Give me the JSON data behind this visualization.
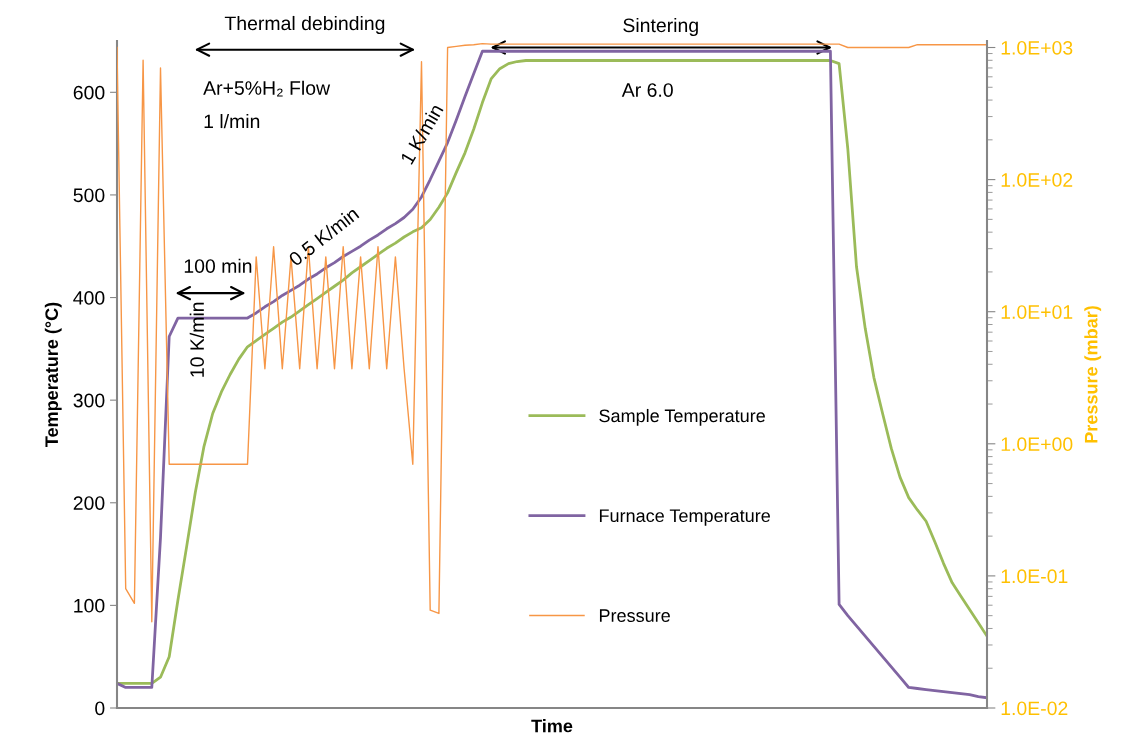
{
  "chart_data": {
    "type": "line",
    "xlabel": "Time",
    "ylabel": "Temperature (°C)",
    "y2label": "Pressure (mbar)",
    "categories": [
      null,
      null,
      null,
      null,
      null,
      null,
      null,
      null,
      null,
      null,
      null,
      null,
      null,
      null,
      null,
      null,
      null,
      null,
      null,
      null,
      null,
      null,
      null,
      null,
      null,
      null,
      null,
      null,
      null,
      null,
      null,
      null,
      null,
      null,
      null,
      null,
      null,
      null,
      null,
      null,
      null,
      null,
      null,
      null,
      null,
      null,
      null,
      null,
      null,
      null,
      null,
      null,
      null,
      null,
      null,
      null,
      null,
      null,
      null,
      null,
      null,
      null,
      null,
      null,
      null,
      null,
      null,
      null,
      null,
      null,
      null,
      null,
      null,
      null,
      null,
      null,
      null,
      null,
      null,
      null,
      null,
      null,
      null,
      null,
      null,
      null,
      null,
      null,
      null,
      null,
      null,
      null,
      null,
      null,
      null,
      null,
      null,
      null,
      null,
      null,
      null
    ],
    "series": [
      {
        "name": "Sample Temperature",
        "color": "#9bbb59",
        "values": [
          24,
          24,
          24,
          24,
          24,
          30,
          50,
          105,
          157,
          210,
          255,
          287,
          308,
          325,
          340,
          352,
          358,
          364,
          370,
          376,
          381,
          387,
          393,
          399,
          405,
          411,
          417,
          424,
          430,
          436,
          442,
          448,
          453,
          459,
          464,
          468,
          476,
          488,
          502,
          522,
          541,
          564,
          590,
          613,
          623,
          628,
          630,
          631,
          631,
          631,
          631,
          631,
          631,
          631,
          631,
          631,
          631,
          631,
          631,
          631,
          631,
          631,
          631,
          631,
          631,
          631,
          631,
          631,
          631,
          631,
          631,
          631,
          631,
          631,
          631,
          631,
          631,
          631,
          631,
          631,
          631,
          631,
          631,
          628,
          545,
          430,
          370,
          322,
          287,
          253,
          225,
          205,
          193,
          182,
          162,
          141,
          122,
          109,
          96,
          83,
          70
        ]
      },
      {
        "name": "Furnace Temperature",
        "color": "#8064a2",
        "values": [
          24,
          20,
          20,
          20,
          20,
          166,
          362,
          380,
          380,
          380,
          380,
          380,
          380,
          380,
          380,
          380,
          385,
          391,
          396,
          402,
          407,
          412,
          418,
          423,
          429,
          434,
          440,
          445,
          450,
          456,
          461,
          467,
          472,
          478,
          486,
          498,
          515,
          533,
          551,
          573,
          596,
          618,
          640,
          640,
          640,
          640,
          640,
          640,
          640,
          640,
          640,
          640,
          640,
          640,
          640,
          640,
          640,
          640,
          640,
          640,
          640,
          640,
          640,
          640,
          640,
          640,
          640,
          640,
          640,
          640,
          640,
          640,
          640,
          640,
          640,
          640,
          640,
          640,
          640,
          640,
          640,
          640,
          640,
          101,
          90,
          80,
          70,
          60,
          50,
          40,
          30,
          20,
          19,
          18,
          17,
          16,
          15,
          14,
          13,
          11,
          10
        ]
      },
      {
        "name": "Pressure",
        "color": "#f79646",
        "axis": "y2",
        "values": [
          1000,
          0.08,
          0.062,
          800,
          0.045,
          700,
          0.7,
          0.7,
          0.7,
          0.7,
          0.7,
          0.7,
          0.7,
          0.7,
          0.7,
          0.7,
          26,
          3.7,
          31,
          3.7,
          26,
          3.7,
          31,
          3.7,
          26,
          3.7,
          31,
          3.7,
          26,
          3.7,
          31,
          3.7,
          26,
          3.7,
          0.7,
          780,
          0.055,
          0.052,
          1000,
          1020,
          1040,
          1050,
          1070,
          1060,
          1060,
          1060,
          1060,
          1060,
          1060,
          1060,
          1060,
          1060,
          1060,
          1060,
          1060,
          1060,
          1060,
          1060,
          1060,
          1060,
          1060,
          1060,
          1060,
          1060,
          1060,
          1060,
          1060,
          1060,
          1060,
          1060,
          1060,
          1060,
          1060,
          1060,
          1060,
          1060,
          1060,
          1060,
          1060,
          1060,
          1060,
          1060,
          1060,
          1060,
          1000,
          1000,
          1000,
          1000,
          1000,
          1000,
          1000,
          1000,
          1050,
          1050,
          1050,
          1050,
          1050,
          1050,
          1050,
          1050,
          1050
        ]
      }
    ],
    "ylim": [
      0,
      650
    ],
    "yticks": [
      0,
      100,
      200,
      300,
      400,
      500,
      600
    ],
    "y2lim": [
      0.01,
      1120
    ],
    "y2ticks": [
      {
        "value": 0.01,
        "label": "1.0E-02"
      },
      {
        "value": 0.1,
        "label": "1.0E-01"
      },
      {
        "value": 1,
        "label": "1.0E+00"
      },
      {
        "value": 10,
        "label": "1.0E+01"
      },
      {
        "value": 100,
        "label": "1.0E+02"
      },
      {
        "value": 1000,
        "label": "1.0E+03"
      }
    ],
    "log": "y2",
    "grid": false,
    "legend": "center",
    "marker": "none",
    "line_style": "solid",
    "tick_labels": "y",
    "annotations": [
      "Thermal debinding",
      "Sintering",
      "Ar+5%H₂ Flow",
      "1 l/min",
      "Ar 6.0",
      "100 min",
      "0.5 K/min",
      "1 K/min",
      "10 K/min"
    ]
  }
}
